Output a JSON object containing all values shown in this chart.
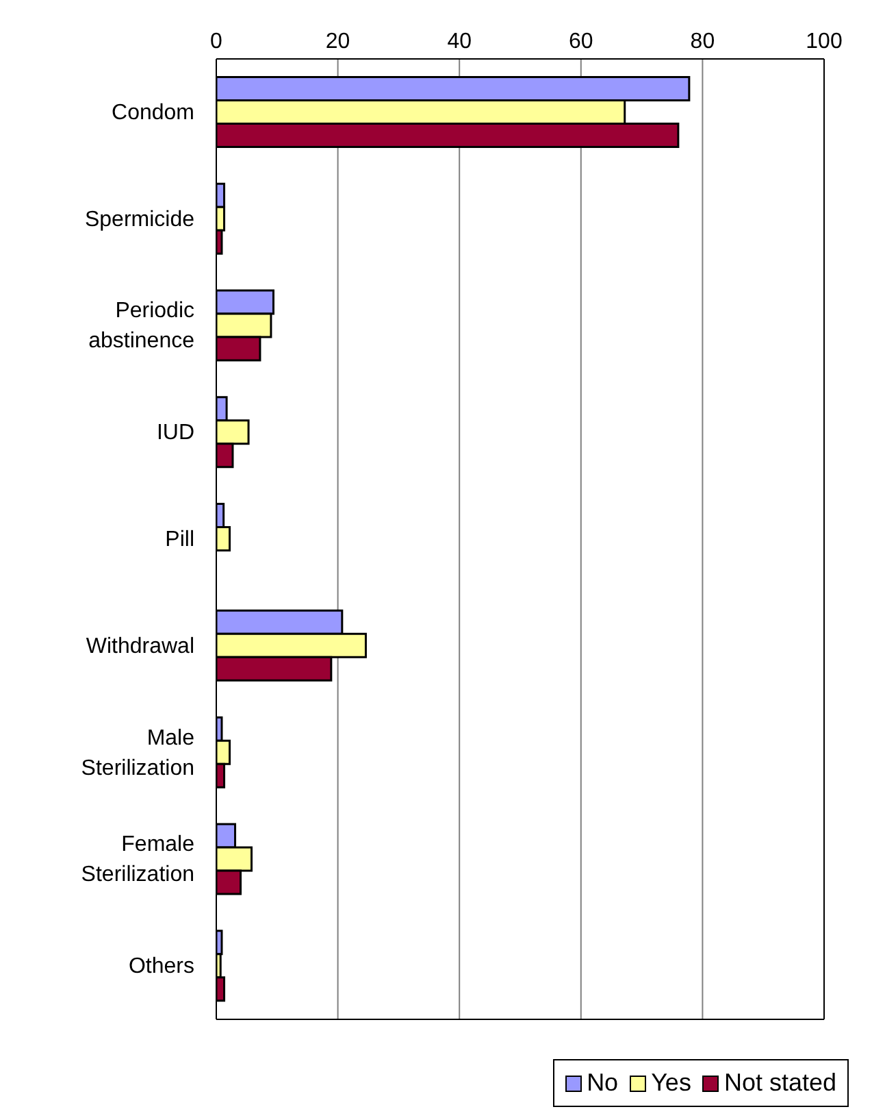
{
  "chart_data": {
    "type": "bar",
    "orientation": "horizontal",
    "categories": [
      "Condom",
      "Spermicide",
      "Periodic abstinence",
      "IUD",
      "Pill",
      "Withdrawal",
      "Male Sterilization",
      "Female Sterilization",
      "Others"
    ],
    "series": [
      {
        "name": "No",
        "color": "#9999ff",
        "values": [
          77.8,
          1.3,
          9.4,
          1.7,
          1.2,
          20.7,
          0.9,
          3.1,
          0.9
        ]
      },
      {
        "name": "Yes",
        "color": "#ffff99",
        "values": [
          67.2,
          1.3,
          9.0,
          5.3,
          2.2,
          24.6,
          2.2,
          5.8,
          0.7
        ]
      },
      {
        "name": "Not stated",
        "color": "#990033",
        "values": [
          76.0,
          0.9,
          7.2,
          2.7,
          0,
          18.9,
          1.3,
          4.0,
          1.3
        ]
      }
    ],
    "xlim": [
      0,
      100
    ],
    "xticks": [
      0,
      20,
      40,
      60,
      80,
      100
    ],
    "grid": "x",
    "legend": "bottom right"
  }
}
